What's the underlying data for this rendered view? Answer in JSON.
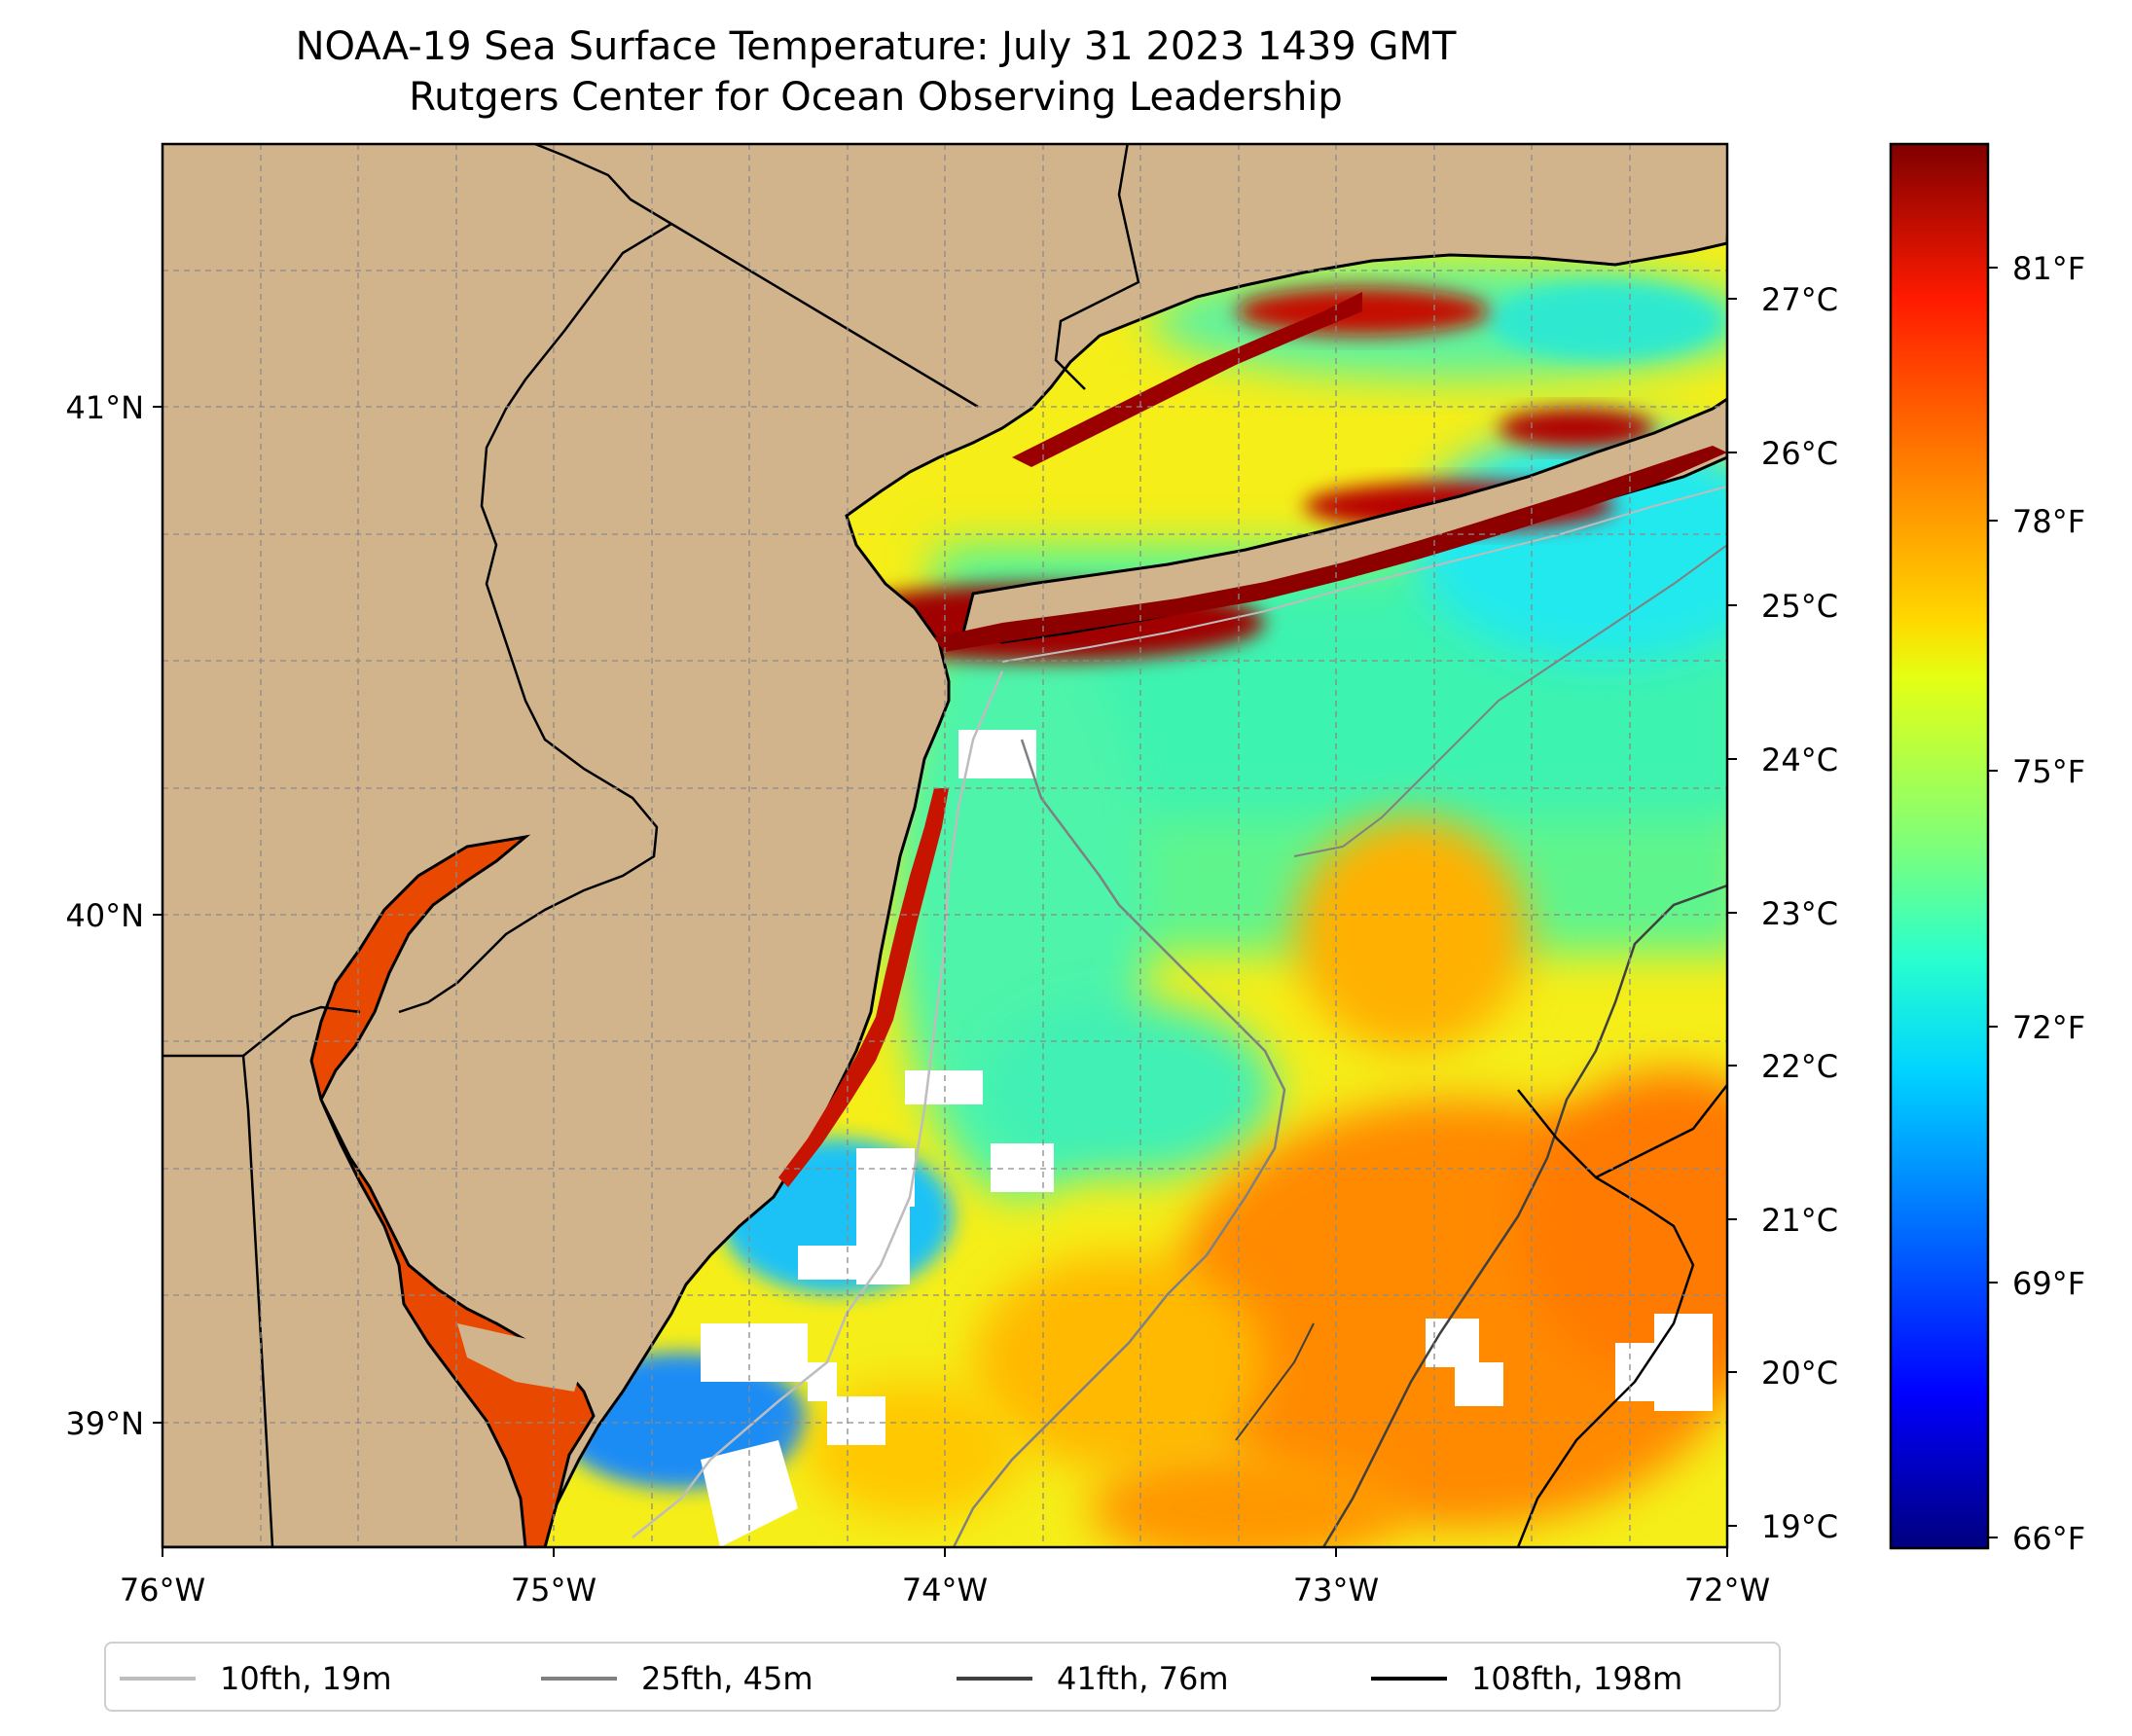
{
  "title": {
    "line1": "NOAA-19 Sea Surface Temperature: July 31 2023 1439 GMT",
    "line2": "Rutgers Center for Ocean Observing Leadership"
  },
  "map": {
    "lon_ticks": [
      "76°W",
      "75°W",
      "74°W",
      "73°W",
      "72°W"
    ],
    "lat_ticks": [
      "41°N",
      "40°N",
      "39°N"
    ],
    "land_color": "#d2b48c",
    "missing_color": "#ffffff",
    "coastline_color": "#000000",
    "gridlines": true
  },
  "colorbar": {
    "colormap": "jet",
    "celsius_ticks": [
      "27°C",
      "26°C",
      "25°C",
      "24°C",
      "23°C",
      "22°C",
      "21°C",
      "20°C",
      "19°C"
    ],
    "fahrenheit_ticks": [
      "81°F",
      "78°F",
      "75°F",
      "72°F",
      "69°F",
      "66°F"
    ],
    "range_f": [
      65.9,
      81.9
    ]
  },
  "legend": {
    "items": [
      {
        "label": "10fth, 19m",
        "color": "#bdbdbd"
      },
      {
        "label": "25fth, 45m",
        "color": "#808080"
      },
      {
        "label": "41fth, 76m",
        "color": "#404040"
      },
      {
        "label": "108fth, 198m",
        "color": "#000000"
      }
    ]
  }
}
